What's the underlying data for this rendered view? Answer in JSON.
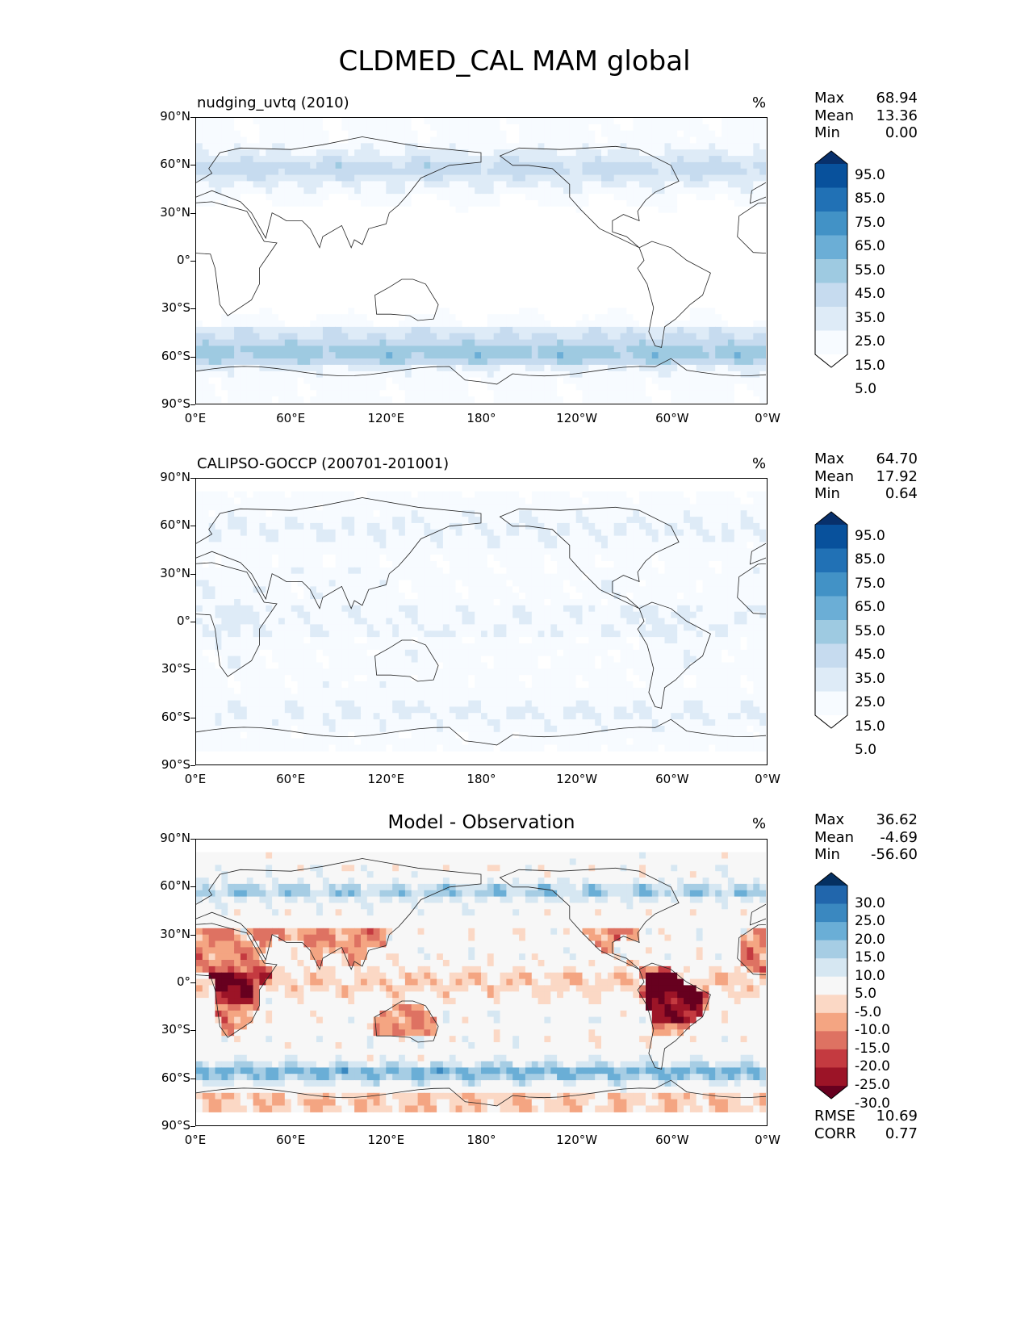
{
  "figure": {
    "title": "CLDMED_CAL MAM global"
  },
  "axes": {
    "lat_labels": [
      "90°N",
      "60°N",
      "30°N",
      "0°",
      "30°S",
      "60°S",
      "90°S"
    ],
    "lon_labels": [
      "0°E",
      "60°E",
      "120°E",
      "180°",
      "120°W",
      "60°W",
      "0°W"
    ]
  },
  "chart_data": [
    {
      "type": "heatmap",
      "title": "nudging_uvtq (2010)",
      "unit": "%",
      "stats": [
        {
          "label": "Max",
          "value": "68.94"
        },
        {
          "label": "Mean",
          "value": "13.36"
        },
        {
          "label": "Min",
          "value": "0.00"
        }
      ],
      "colorbar": {
        "levels": [
          "95.0",
          "85.0",
          "75.0",
          "65.0",
          "55.0",
          "45.0",
          "35.0",
          "25.0",
          "15.0",
          "5.0"
        ],
        "colors": [
          "#08306b",
          "#08519c",
          "#2171b5",
          "#4292c6",
          "#6baed6",
          "#9ecae1",
          "#c6dbef",
          "#deebf7",
          "#f7fbff",
          "#ffffff"
        ],
        "extend": "both"
      },
      "xlim": [
        0,
        360
      ],
      "ylim": [
        -90,
        90
      ]
    },
    {
      "type": "heatmap",
      "title": "CALIPSO-GOCCP (200701-201001)",
      "unit": "%",
      "stats": [
        {
          "label": "Max",
          "value": "64.70"
        },
        {
          "label": "Mean",
          "value": "17.92"
        },
        {
          "label": "Min",
          "value": "0.64"
        }
      ],
      "colorbar": {
        "levels": [
          "95.0",
          "85.0",
          "75.0",
          "65.0",
          "55.0",
          "45.0",
          "35.0",
          "25.0",
          "15.0",
          "5.0"
        ],
        "colors": [
          "#08306b",
          "#08519c",
          "#2171b5",
          "#4292c6",
          "#6baed6",
          "#9ecae1",
          "#c6dbef",
          "#deebf7",
          "#f7fbff",
          "#ffffff"
        ],
        "extend": "both"
      },
      "xlim": [
        0,
        360
      ],
      "ylim": [
        -90,
        90
      ]
    },
    {
      "type": "heatmap",
      "title": "Model - Observation",
      "unit": "%",
      "stats": [
        {
          "label": "Max",
          "value": "36.62"
        },
        {
          "label": "Mean",
          "value": "-4.69"
        },
        {
          "label": "Min",
          "value": "-56.60"
        }
      ],
      "extra_stats": [
        {
          "label": "RMSE",
          "value": "10.69"
        },
        {
          "label": "CORR",
          "value": "0.77"
        }
      ],
      "colorbar": {
        "levels": [
          "30.0",
          "25.0",
          "20.0",
          "15.0",
          "10.0",
          "5.0",
          "-5.0",
          "-10.0",
          "-15.0",
          "-20.0",
          "-25.0",
          "-30.0"
        ],
        "colors": [
          "#053061",
          "#2166ac",
          "#3a88c0",
          "#6aaed6",
          "#a6cde4",
          "#d6e7f2",
          "#f7f7f7",
          "#fbd8c5",
          "#f4a582",
          "#de7262",
          "#c43a40",
          "#9c1427",
          "#67001f"
        ],
        "extend": "both"
      },
      "xlim": [
        0,
        360
      ],
      "ylim": [
        -90,
        90
      ]
    }
  ]
}
